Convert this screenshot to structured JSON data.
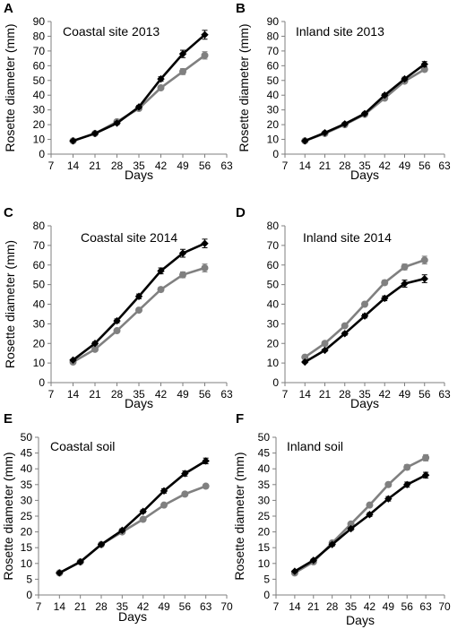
{
  "colors": {
    "black_series": "#000000",
    "grey_series": "#808080",
    "axis": "#7f7f7f"
  },
  "chart_data": [
    {
      "panel_letter": "A",
      "title": "Coastal site 2013",
      "type": "line",
      "xlabel": "Days",
      "ylabel": "Rosette diameter (mm)",
      "xlim": [
        7,
        63
      ],
      "xticks": [
        7,
        14,
        21,
        28,
        35,
        42,
        49,
        56,
        63
      ],
      "ylim": [
        0,
        90
      ],
      "yticks": [
        0,
        10,
        20,
        30,
        40,
        50,
        60,
        70,
        80,
        90
      ],
      "grid": false,
      "series": [
        {
          "color": "#000000",
          "marker": "diamond",
          "x": [
            14,
            21,
            28,
            35,
            42,
            49,
            56
          ],
          "values": [
            9,
            14,
            21,
            32,
            51,
            68,
            81
          ],
          "errors": [
            0.5,
            0.8,
            1,
            1,
            1.5,
            2.5,
            3
          ]
        },
        {
          "color": "#808080",
          "marker": "circle",
          "x": [
            14,
            21,
            28,
            35,
            42,
            49,
            56
          ],
          "values": [
            9,
            14,
            22,
            31,
            45,
            56,
            67
          ],
          "errors": [
            0.5,
            0.6,
            0.8,
            1,
            1,
            2,
            2.5
          ]
        }
      ]
    },
    {
      "panel_letter": "B",
      "title": "Inland site 2013",
      "type": "line",
      "xlabel": "Days",
      "ylabel": "Rosette diameter (mm)",
      "xlim": [
        7,
        63
      ],
      "xticks": [
        7,
        14,
        21,
        28,
        35,
        42,
        49,
        56,
        63
      ],
      "ylim": [
        0,
        90
      ],
      "yticks": [
        0,
        10,
        20,
        30,
        40,
        50,
        60,
        70,
        80,
        90
      ],
      "grid": false,
      "series": [
        {
          "color": "#000000",
          "marker": "diamond",
          "x": [
            14,
            21,
            28,
            35,
            42,
            49,
            56
          ],
          "values": [
            9,
            14.5,
            20.5,
            27.5,
            40,
            51,
            61
          ],
          "errors": [
            0.5,
            0.5,
            0.6,
            0.8,
            1,
            1.2,
            1.8
          ]
        },
        {
          "color": "#808080",
          "marker": "circle",
          "x": [
            14,
            21,
            28,
            35,
            42,
            49,
            56
          ],
          "values": [
            9,
            14,
            20,
            27,
            38,
            49.5,
            57.5
          ],
          "errors": [
            0.5,
            0.5,
            0.6,
            0.8,
            1,
            1.2,
            1.5
          ]
        }
      ]
    },
    {
      "panel_letter": "C",
      "title": "Coastal site 2014",
      "type": "line",
      "xlabel": "Days",
      "ylabel": "Rosette diameter (mm)",
      "xlim": [
        7,
        63
      ],
      "xticks": [
        7,
        14,
        21,
        28,
        35,
        42,
        49,
        56,
        63
      ],
      "ylim": [
        0,
        80
      ],
      "yticks": [
        0,
        10,
        20,
        30,
        40,
        50,
        60,
        70,
        80
      ],
      "grid": false,
      "series": [
        {
          "color": "#000000",
          "marker": "diamond",
          "x": [
            14,
            21,
            28,
            35,
            42,
            49,
            56
          ],
          "values": [
            11.5,
            20,
            31.5,
            44,
            57,
            66,
            71
          ],
          "errors": [
            0.5,
            0.8,
            1,
            1.2,
            1.5,
            2,
            2.2
          ]
        },
        {
          "color": "#808080",
          "marker": "circle",
          "x": [
            14,
            21,
            28,
            35,
            42,
            49,
            56
          ],
          "values": [
            10.5,
            17,
            26.5,
            37,
            47.5,
            55,
            58.5
          ],
          "errors": [
            0.5,
            0.6,
            0.8,
            1,
            1.2,
            1.5,
            2
          ]
        }
      ]
    },
    {
      "panel_letter": "D",
      "title": "Inland site 2014",
      "type": "line",
      "xlabel": "Days",
      "ylabel": "",
      "xlim": [
        7,
        63
      ],
      "xticks": [
        7,
        14,
        21,
        28,
        35,
        42,
        49,
        56,
        63
      ],
      "ylim": [
        0,
        80
      ],
      "yticks": [
        0,
        10,
        20,
        30,
        40,
        50,
        60,
        70,
        80
      ],
      "grid": false,
      "series": [
        {
          "color": "#000000",
          "marker": "diamond",
          "x": [
            14,
            21,
            28,
            35,
            42,
            49,
            56
          ],
          "values": [
            10.5,
            16.5,
            25,
            34,
            43,
            50.5,
            53
          ],
          "errors": [
            0.5,
            0.6,
            0.8,
            1,
            1.2,
            1.8,
            2
          ]
        },
        {
          "color": "#808080",
          "marker": "circle",
          "x": [
            14,
            21,
            28,
            35,
            42,
            49,
            56
          ],
          "values": [
            13,
            20,
            29,
            40,
            51,
            59,
            62.5
          ],
          "errors": [
            0.5,
            0.6,
            0.8,
            1,
            1.2,
            1.5,
            2
          ]
        }
      ]
    },
    {
      "panel_letter": "E",
      "title": "Coastal soil",
      "type": "line",
      "xlabel": "Days",
      "ylabel": "Rosette diameter (mm)",
      "xlim": [
        7,
        70
      ],
      "xticks": [
        7,
        14,
        21,
        28,
        35,
        42,
        49,
        56,
        63,
        70
      ],
      "ylim": [
        0,
        50
      ],
      "yticks": [
        0,
        5,
        10,
        15,
        20,
        25,
        30,
        35,
        40,
        45,
        50
      ],
      "grid": false,
      "series": [
        {
          "color": "#000000",
          "marker": "diamond",
          "x": [
            14,
            21,
            28,
            35,
            42,
            49,
            56,
            63
          ],
          "values": [
            7,
            10.5,
            16,
            20.5,
            26.5,
            33,
            38.5,
            42.5
          ],
          "errors": [
            0.3,
            0.4,
            0.4,
            0.5,
            0.5,
            0.7,
            0.8,
            0.9
          ]
        },
        {
          "color": "#808080",
          "marker": "circle",
          "x": [
            14,
            21,
            28,
            35,
            42,
            49,
            56,
            63
          ],
          "values": [
            7,
            10.5,
            16,
            20,
            24,
            28.5,
            32,
            34.5
          ],
          "errors": [
            0.3,
            0.4,
            0.4,
            0.5,
            0.5,
            0.5,
            0.6,
            0.6
          ]
        }
      ]
    },
    {
      "panel_letter": "F",
      "title": "Inland soil",
      "type": "line",
      "xlabel": "Days",
      "ylabel": "Rosette diameter (mm)",
      "xlim": [
        7,
        70
      ],
      "xticks": [
        7,
        14,
        21,
        28,
        35,
        42,
        49,
        56,
        63,
        70
      ],
      "ylim": [
        0,
        50
      ],
      "yticks": [
        0,
        5,
        10,
        15,
        20,
        25,
        30,
        35,
        40,
        45,
        50
      ],
      "grid": false,
      "series": [
        {
          "color": "#000000",
          "marker": "diamond",
          "x": [
            14,
            21,
            28,
            35,
            42,
            49,
            56,
            63
          ],
          "values": [
            7.5,
            11,
            16,
            21,
            25.5,
            30.5,
            35,
            38
          ],
          "errors": [
            0.3,
            0.4,
            0.5,
            0.5,
            0.6,
            0.7,
            0.8,
            0.9
          ]
        },
        {
          "color": "#808080",
          "marker": "circle",
          "x": [
            14,
            21,
            28,
            35,
            42,
            49,
            56,
            63
          ],
          "values": [
            7,
            10.5,
            16.5,
            22.5,
            28.5,
            35,
            40.5,
            43.5
          ],
          "errors": [
            0.3,
            0.4,
            0.5,
            0.5,
            0.6,
            0.7,
            0.8,
            1
          ]
        }
      ]
    }
  ]
}
